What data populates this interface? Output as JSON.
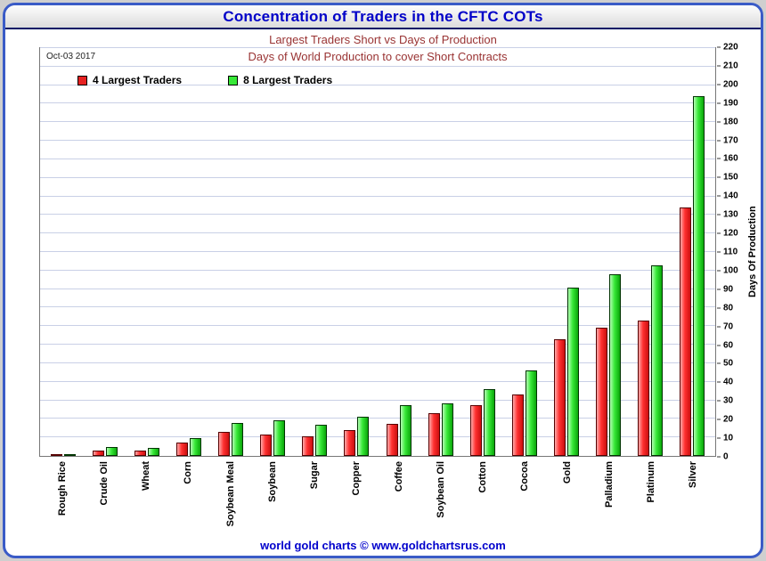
{
  "header": {
    "title": "Concentration of Traders in the CFTC COTs"
  },
  "subtitle": "Largest Traders Short vs Days of Production",
  "plot": {
    "inner_title": "Days of World Production to cover Short Contracts",
    "date_label": "Oct-03  2017"
  },
  "legend": [
    {
      "label": "4 Largest Traders",
      "color": "#e62222"
    },
    {
      "label": "8 Largest Traders",
      "color": "#37e837"
    }
  ],
  "footer": {
    "text": "world gold charts © www.goldchartsrus.com"
  },
  "colors": {
    "title_blue": "#0000c8",
    "subtitle_red": "#993333",
    "frame_border_blue": "#3a5bc7",
    "gridline": "#c9d0e6",
    "bar_red": "#e62222",
    "bar_green": "#37e837"
  },
  "chart_data": {
    "type": "bar",
    "title": "Days of World Production to cover Short Contracts",
    "subtitle": "Largest Traders Short vs Days of Production",
    "date": "Oct-03 2017",
    "categories": [
      "Rough Rice",
      "Crude Oil",
      "Wheat",
      "Corn",
      "Soybean Meal",
      "Soybean",
      "Sugar",
      "Copper",
      "Coffee",
      "Soybean Oil",
      "Cotton",
      "Cocoa",
      "Gold",
      "Palladium",
      "Platinum",
      "Silver"
    ],
    "series": [
      {
        "name": "4 Largest Traders",
        "color": "#e62222",
        "values": [
          0.5,
          3,
          3,
          7,
          13,
          11.5,
          10.5,
          14,
          17.5,
          23,
          27.5,
          33,
          63,
          69,
          73,
          134
        ]
      },
      {
        "name": "8 Largest Traders",
        "color": "#37e837",
        "values": [
          1,
          5,
          4.5,
          9.5,
          18,
          19,
          17,
          21,
          27.5,
          28.5,
          36,
          46,
          91,
          98,
          103,
          194
        ]
      }
    ],
    "xlabel": "",
    "ylabel": "Days Of Production",
    "ylim": [
      0,
      220
    ],
    "ytick_step": 10,
    "grid": true,
    "legend_position": "top-left",
    "y_axis_side": "right"
  }
}
